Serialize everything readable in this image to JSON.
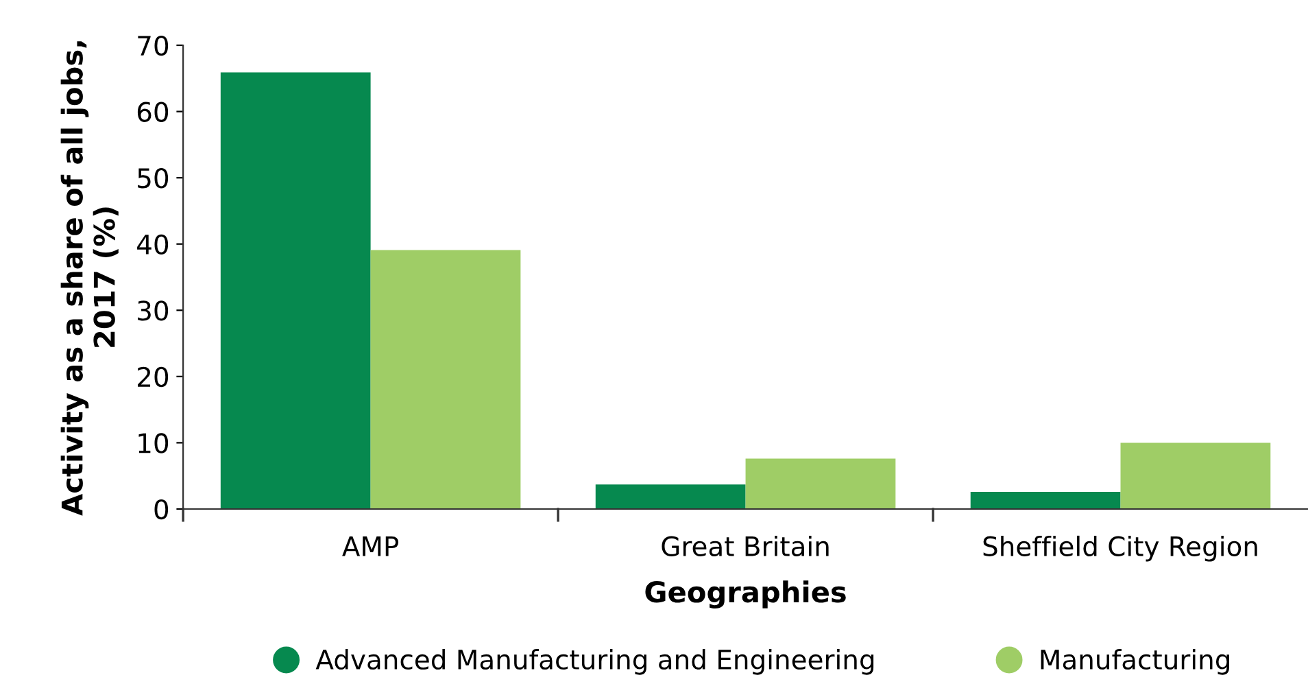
{
  "chart_data": {
    "type": "bar",
    "xlabel": "Geographies",
    "ylabel": "Activity as a share of all jobs,\n2017 (%)",
    "categories": [
      "AMP",
      "Great Britain",
      "Sheffield City Region"
    ],
    "series": [
      {
        "name": "Advanced Manufacturing and Engineering",
        "color": "#06894f",
        "values": [
          65.9,
          3.7,
          2.6
        ]
      },
      {
        "name": "Manufacturing",
        "color": "#9fcd66",
        "values": [
          39.1,
          7.6,
          10.0
        ]
      }
    ],
    "ylim": [
      0,
      70
    ],
    "yticks": [
      0,
      10,
      20,
      30,
      40,
      50,
      60,
      70
    ],
    "grid": false,
    "legend": "bottom",
    "marker": "circle"
  }
}
